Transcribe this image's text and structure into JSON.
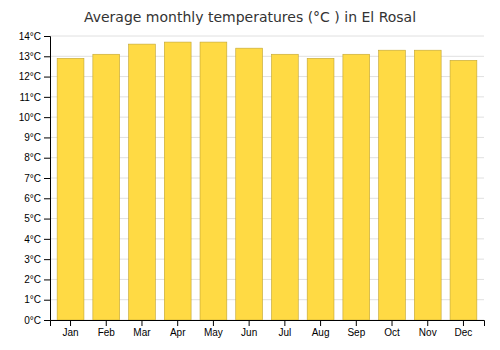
{
  "chart_data": {
    "type": "bar",
    "title": "Average monthly temperatures (°C ) in El Rosal",
    "categories": [
      "Jan",
      "Feb",
      "Mar",
      "Apr",
      "May",
      "Jun",
      "Jul",
      "Aug",
      "Sep",
      "Oct",
      "Nov",
      "Dec"
    ],
    "values": [
      12.9,
      13.1,
      13.6,
      13.7,
      13.7,
      13.4,
      13.1,
      12.9,
      13.1,
      13.3,
      13.3,
      12.8
    ],
    "color": "#FFDA44",
    "ylim": [
      0,
      14
    ],
    "yticks": [
      {
        "value": 0,
        "label": "0°C"
      },
      {
        "value": 1,
        "label": "1°C"
      },
      {
        "value": 2,
        "label": "2°C"
      },
      {
        "value": 3,
        "label": "3°C"
      },
      {
        "value": 4,
        "label": "4°C"
      },
      {
        "value": 5,
        "label": "5°C"
      },
      {
        "value": 6,
        "label": "6°C"
      },
      {
        "value": 7,
        "label": "7°C"
      },
      {
        "value": 8,
        "label": "8°C"
      },
      {
        "value": 9,
        "label": "9°C"
      },
      {
        "value": 10,
        "label": "10°C"
      },
      {
        "value": 11,
        "label": "11°C"
      },
      {
        "value": 12,
        "label": "12°C"
      },
      {
        "value": 13,
        "label": "13°C"
      },
      {
        "value": 14,
        "label": "14°C"
      }
    ],
    "grid": true
  }
}
